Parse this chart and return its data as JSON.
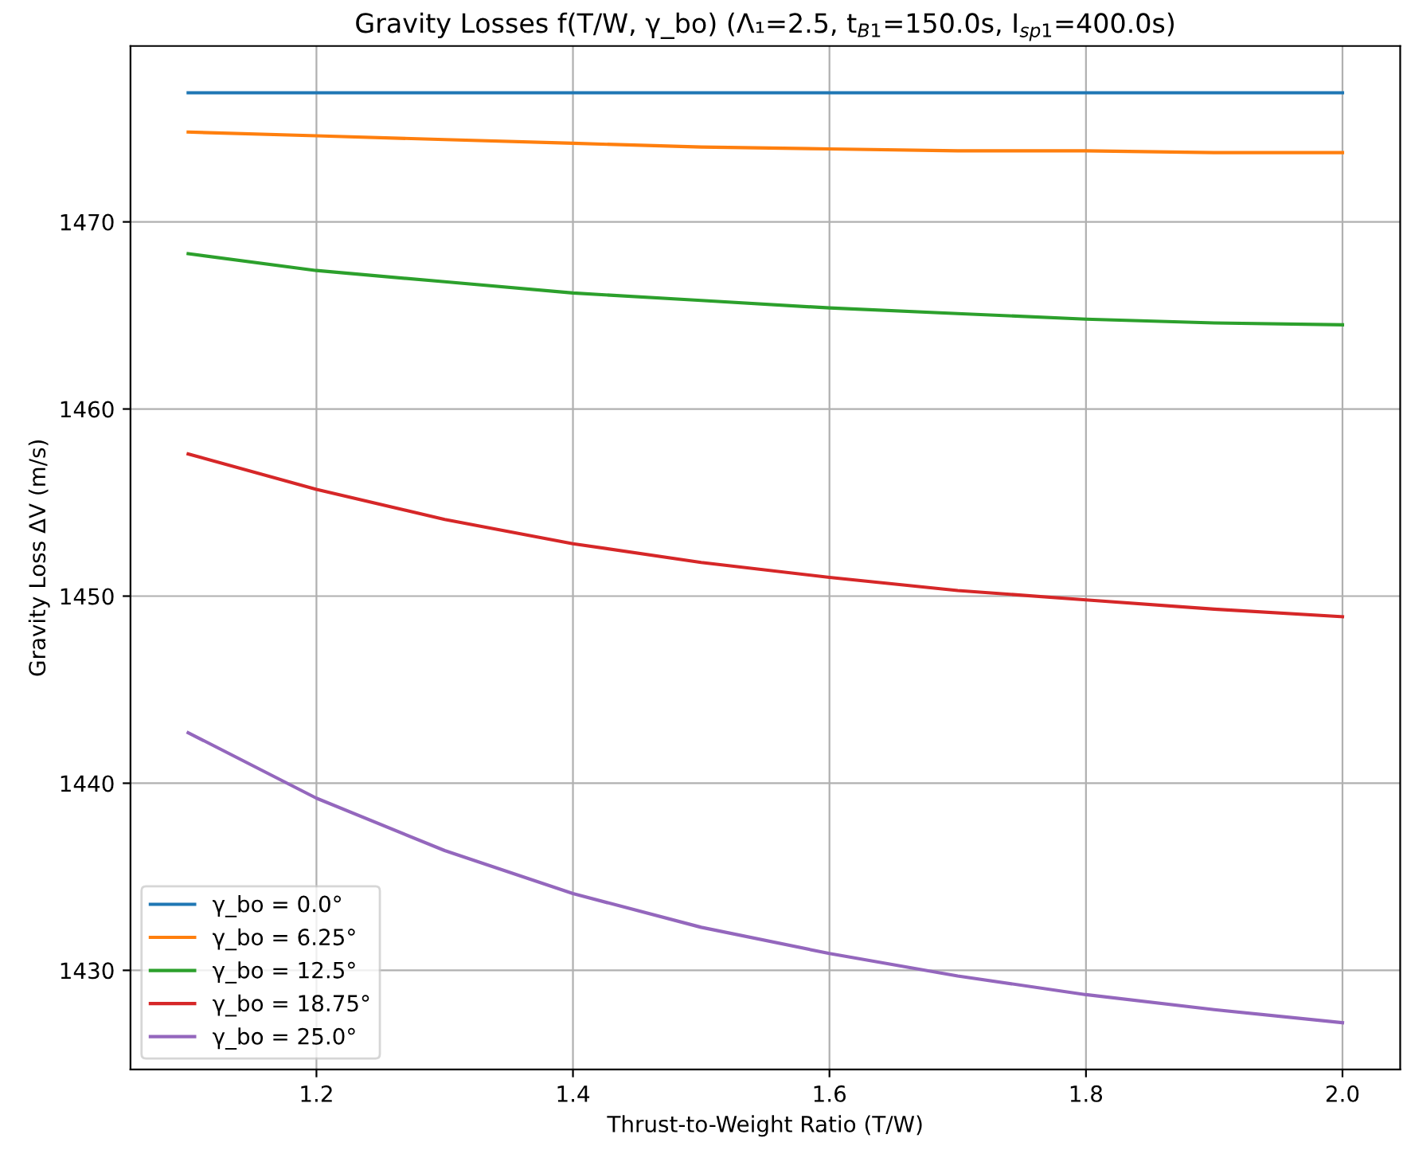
{
  "chart_data": {
    "type": "line",
    "title": "Gravity Losses f(T/W, γ_bo) (Λ₁=2.5, t$_{B1}$=150.0s, I$_{sp1}$=400.0s)",
    "xlabel": "Thrust-to-Weight Ratio (T/W)",
    "ylabel": "Gravity Loss ΔV (m/s)",
    "x": [
      1.1,
      1.2,
      1.3,
      1.4,
      1.5,
      1.6,
      1.7,
      1.8,
      1.9,
      2.0
    ],
    "series": [
      {
        "name": "γ_bo = 0.0°",
        "color": "#1f77b4",
        "values": [
          1476.9,
          1476.9,
          1476.9,
          1476.9,
          1476.9,
          1476.9,
          1476.9,
          1476.9,
          1476.9,
          1476.9
        ]
      },
      {
        "name": "γ_bo = 6.25°",
        "color": "#ff7f0e",
        "values": [
          1474.8,
          1474.6,
          1474.4,
          1474.2,
          1474.0,
          1473.9,
          1473.8,
          1473.8,
          1473.7,
          1473.7
        ]
      },
      {
        "name": "γ_bo = 12.5°",
        "color": "#2ca02c",
        "values": [
          1468.3,
          1467.4,
          1466.8,
          1466.2,
          1465.8,
          1465.4,
          1465.1,
          1464.8,
          1464.6,
          1464.5
        ]
      },
      {
        "name": "γ_bo = 18.75°",
        "color": "#d62728",
        "values": [
          1457.6,
          1455.7,
          1454.1,
          1452.8,
          1451.8,
          1451.0,
          1450.3,
          1449.8,
          1449.3,
          1448.9
        ]
      },
      {
        "name": "γ_bo = 25.0°",
        "color": "#9467bd",
        "values": [
          1442.7,
          1439.2,
          1436.4,
          1434.1,
          1432.3,
          1430.9,
          1429.7,
          1428.7,
          1427.9,
          1427.2
        ]
      }
    ],
    "xlim": [
      1.055,
      2.045
    ],
    "ylim": [
      1424.7,
      1479.4
    ],
    "xticks": [
      1.2,
      1.4,
      1.6,
      1.8,
      {
        "value": 2.0,
        "label": "2.0"
      }
    ],
    "yticks": [
      1430,
      1440,
      1450,
      1460,
      1470
    ],
    "grid": true,
    "legend": "lower left",
    "marker": "none",
    "line_style": "solid"
  }
}
